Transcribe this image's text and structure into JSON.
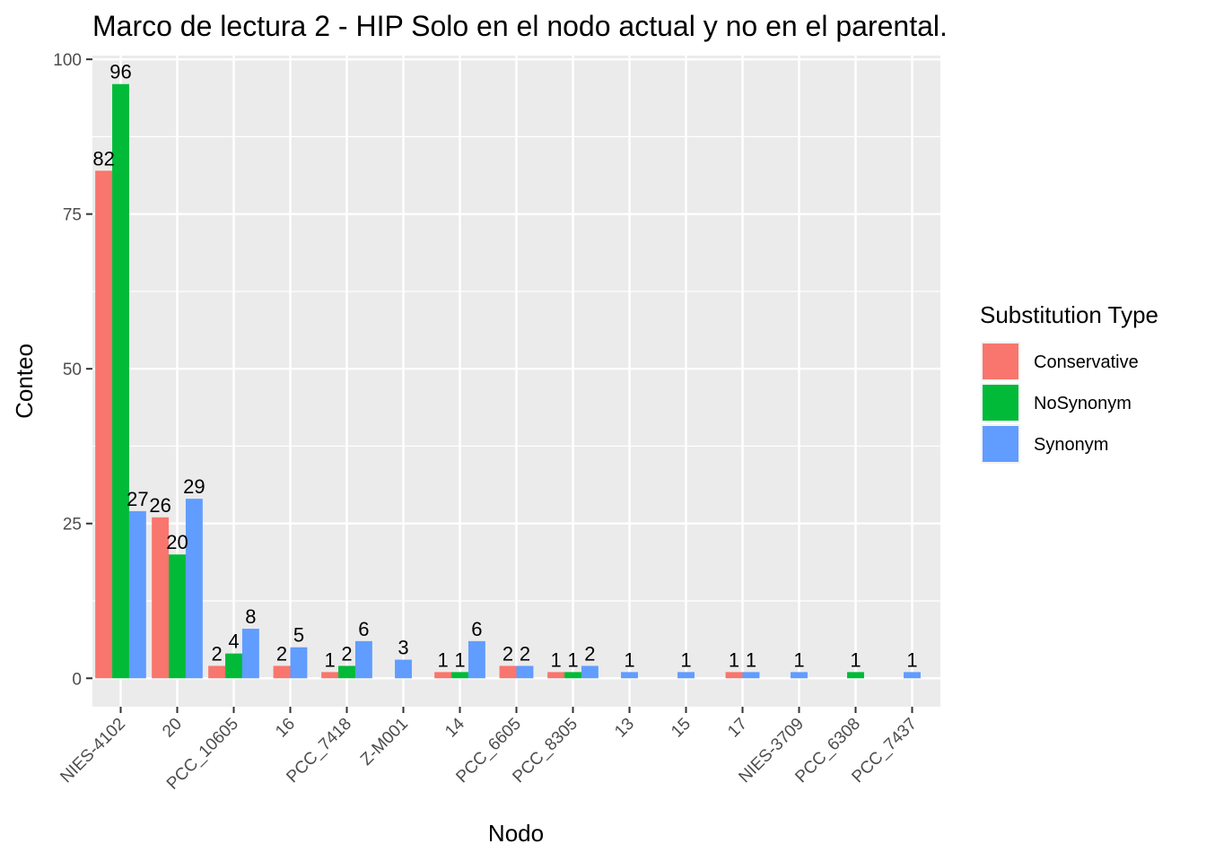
{
  "chart_data": {
    "type": "bar",
    "title": "Marco de lectura 2 - HIP Solo en el nodo actual y no en el parental.",
    "xlabel": "Nodo",
    "ylabel": "Conteo",
    "ylim": [
      -4.6,
      100.6
    ],
    "yticks": [
      0,
      25,
      50,
      75,
      100
    ],
    "grid": true,
    "legend": {
      "title": "Substitution Type",
      "placement": "right"
    },
    "categories": [
      "NIES-4102",
      "20",
      "PCC_10605",
      "16",
      "PCC_7418",
      "Z-M001",
      "14",
      "PCC_6605",
      "PCC_8305",
      "13",
      "15",
      "17",
      "NIES-3709",
      "PCC_6308",
      "PCC_7437"
    ],
    "series": [
      {
        "name": "Conservative",
        "color": "#F8766D",
        "values": [
          82,
          26,
          2,
          2,
          1,
          null,
          1,
          2,
          1,
          null,
          null,
          1,
          null,
          null,
          null
        ]
      },
      {
        "name": "NoSynonym",
        "color": "#00BA38",
        "values": [
          96,
          20,
          4,
          null,
          2,
          null,
          1,
          null,
          1,
          null,
          null,
          null,
          null,
          1,
          null
        ]
      },
      {
        "name": "Synonym",
        "color": "#619CFF",
        "values": [
          27,
          29,
          8,
          5,
          6,
          3,
          6,
          2,
          2,
          1,
          1,
          1,
          1,
          null,
          1
        ]
      }
    ],
    "panel_background": "#EBEBEB",
    "grid_color": "#FFFFFF"
  }
}
